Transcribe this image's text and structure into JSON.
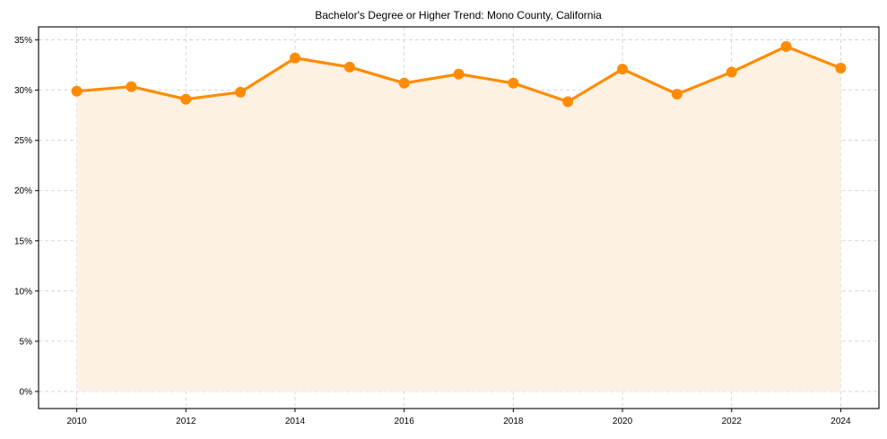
{
  "chart_data": {
    "type": "line",
    "title": "Bachelor's Degree or Higher Trend: Mono County, California",
    "xlabel": "",
    "ylabel": "",
    "x": [
      2010,
      2011,
      2012,
      2013,
      2014,
      2015,
      2016,
      2017,
      2018,
      2019,
      2020,
      2021,
      2022,
      2023,
      2024
    ],
    "series": [
      {
        "name": "Bachelor's Degree or Higher",
        "values": [
          29.9,
          30.35,
          29.1,
          29.8,
          33.2,
          32.3,
          30.7,
          31.6,
          30.7,
          28.85,
          32.1,
          29.6,
          31.8,
          34.35,
          32.2
        ],
        "color": "#FF8C00",
        "fill": "#FDF1E3",
        "markers": true,
        "area_fill": true
      }
    ],
    "xticks": [
      "2010",
      "2012",
      "2014",
      "2016",
      "2018",
      "2020",
      "2022",
      "2024"
    ],
    "yticks": [
      "0%",
      "5%",
      "10%",
      "15%",
      "20%",
      "25%",
      "30%",
      "35%"
    ],
    "ylim": [
      -1.7,
      36.3
    ],
    "xlim": [
      2009.3,
      2024.7
    ],
    "grid": true,
    "legend": null
  }
}
